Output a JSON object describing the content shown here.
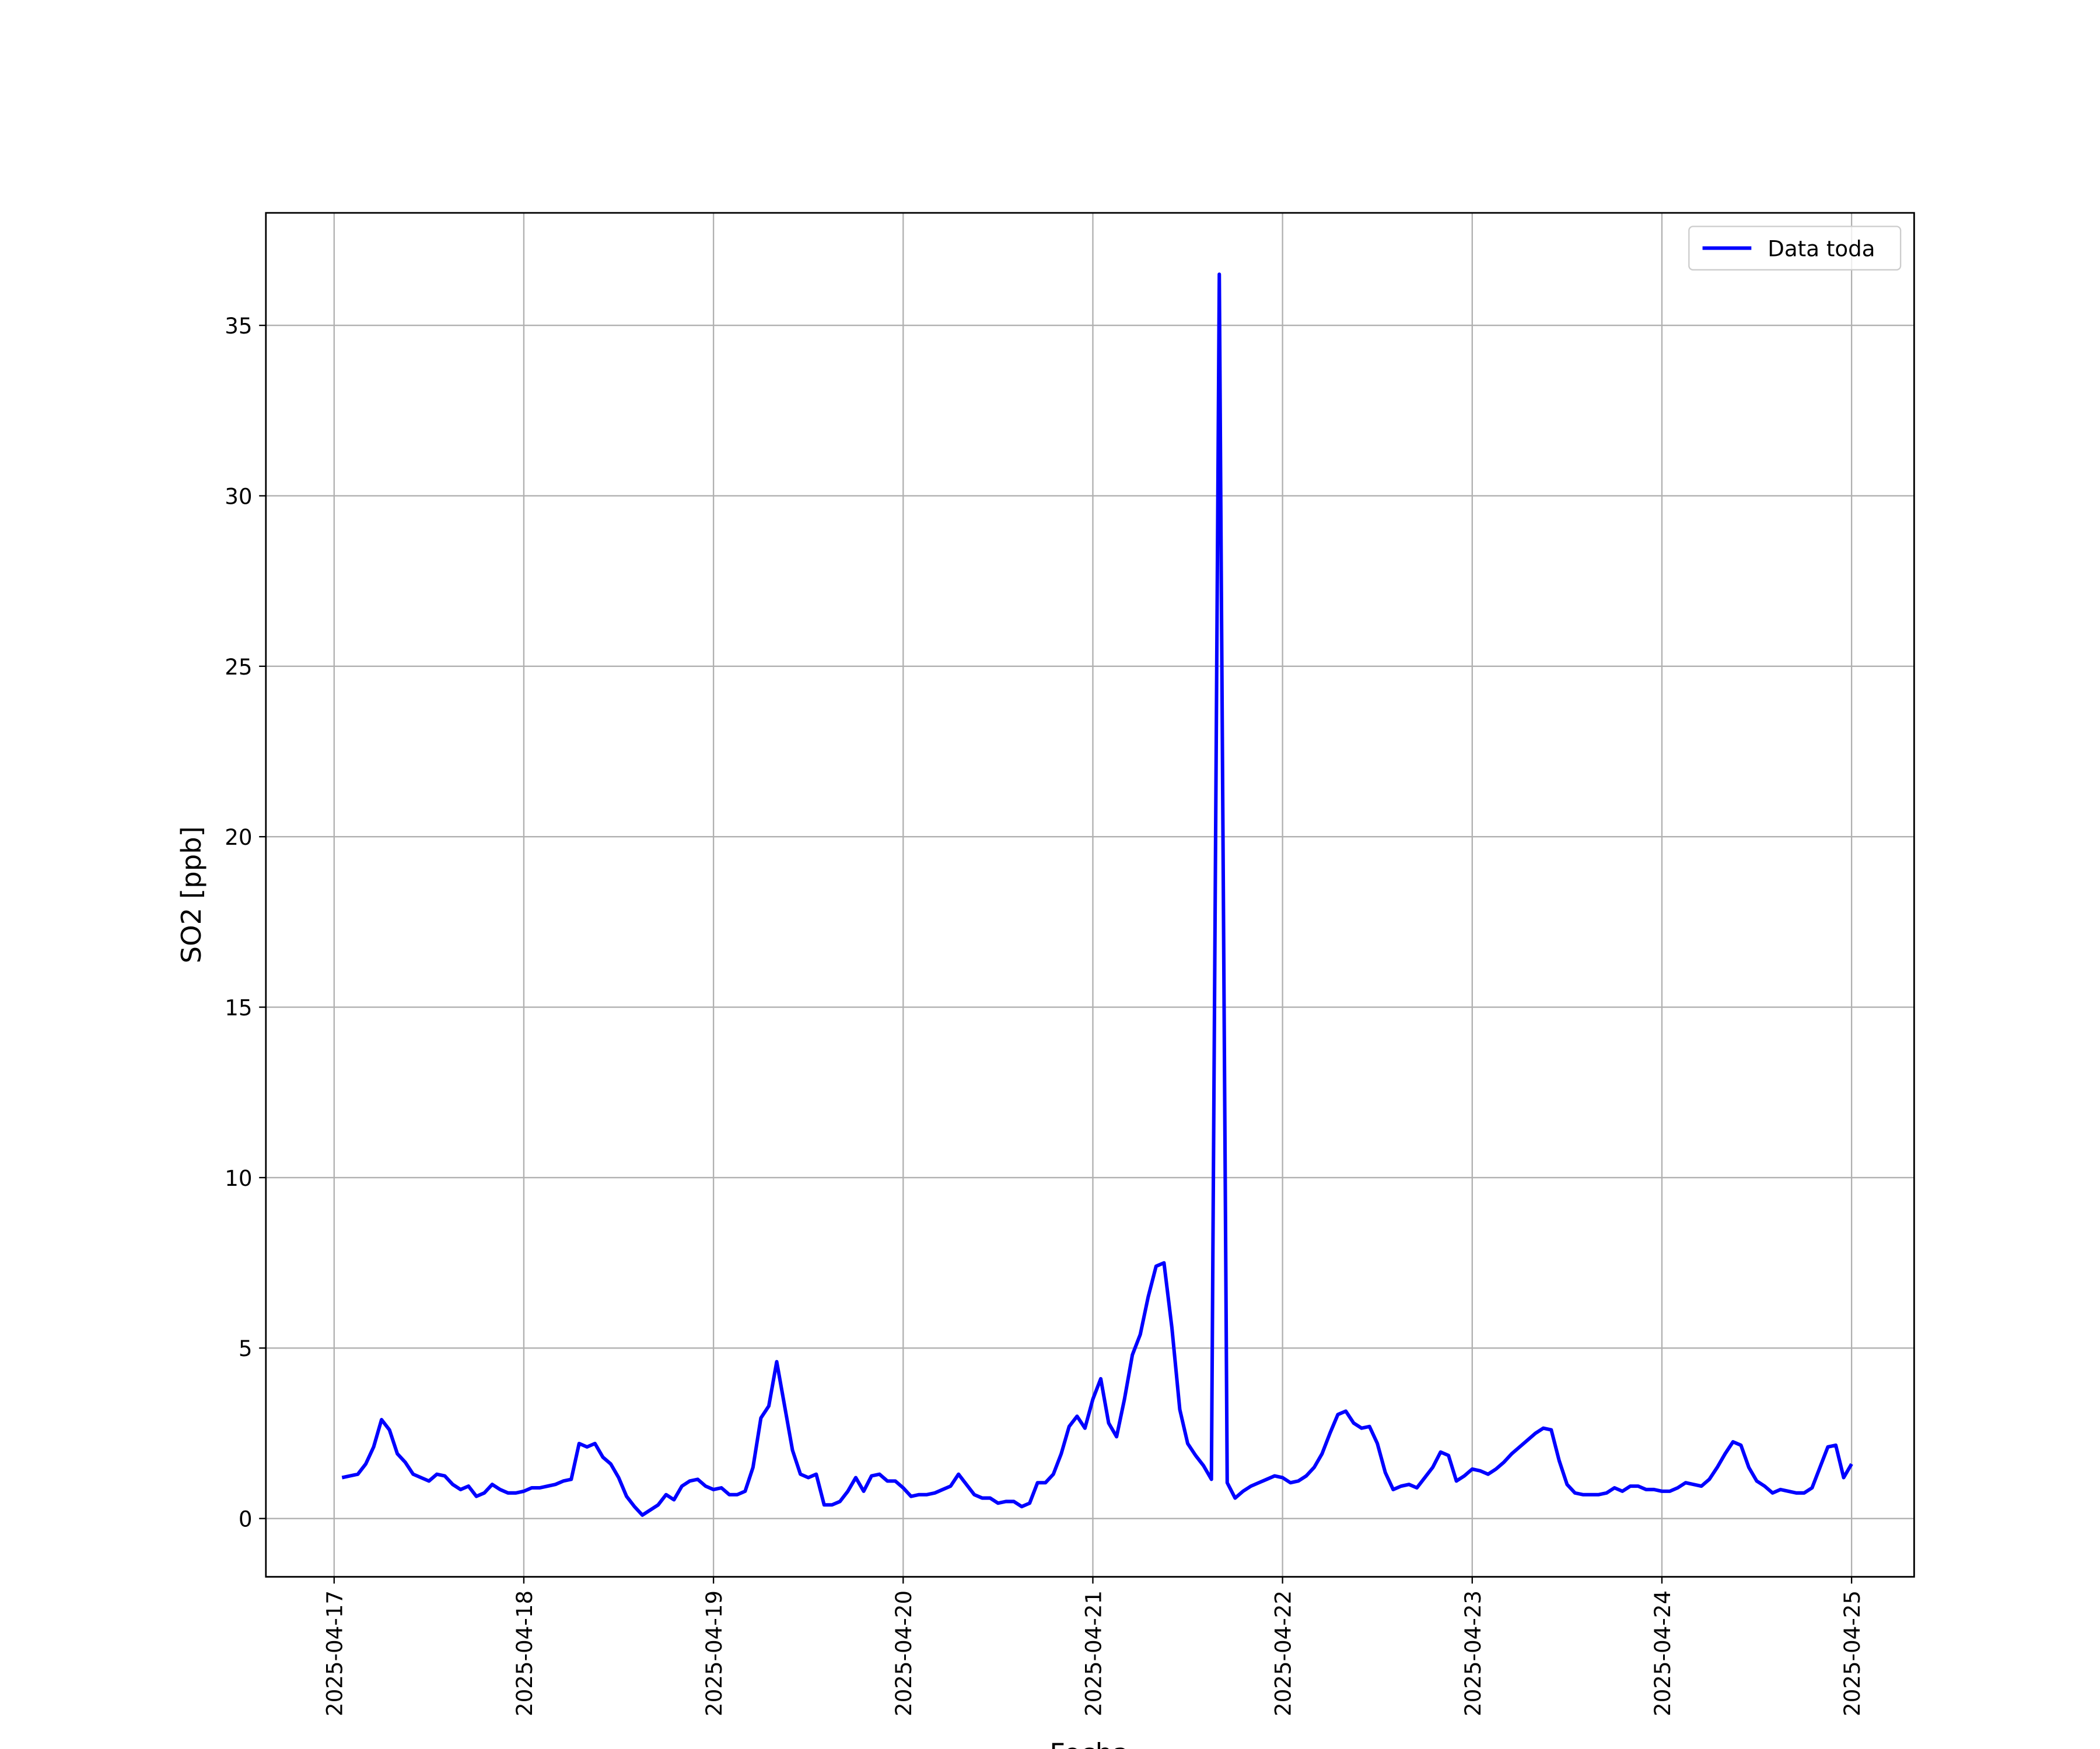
{
  "chart_data": {
    "type": "line",
    "xlabel": "Fecha",
    "ylabel": "SO2 [ppb]",
    "x": [
      "2025-04-17 01:00",
      "2025-04-17 02:00",
      "2025-04-17 03:00",
      "2025-04-17 04:00",
      "2025-04-17 05:00",
      "2025-04-17 06:00",
      "2025-04-17 07:00",
      "2025-04-17 08:00",
      "2025-04-17 09:00",
      "2025-04-17 10:00",
      "2025-04-17 11:00",
      "2025-04-17 12:00",
      "2025-04-17 13:00",
      "2025-04-17 14:00",
      "2025-04-17 15:00",
      "2025-04-17 16:00",
      "2025-04-17 17:00",
      "2025-04-17 18:00",
      "2025-04-17 19:00",
      "2025-04-17 20:00",
      "2025-04-17 21:00",
      "2025-04-17 22:00",
      "2025-04-17 23:00",
      "2025-04-18 00:00",
      "2025-04-18 01:00",
      "2025-04-18 02:00",
      "2025-04-18 03:00",
      "2025-04-18 04:00",
      "2025-04-18 05:00",
      "2025-04-18 06:00",
      "2025-04-18 07:00",
      "2025-04-18 08:00",
      "2025-04-18 09:00",
      "2025-04-18 10:00",
      "2025-04-18 11:00",
      "2025-04-18 12:00",
      "2025-04-18 13:00",
      "2025-04-18 14:00",
      "2025-04-18 15:00",
      "2025-04-18 16:00",
      "2025-04-18 17:00",
      "2025-04-18 18:00",
      "2025-04-18 19:00",
      "2025-04-18 20:00",
      "2025-04-18 21:00",
      "2025-04-18 22:00",
      "2025-04-18 23:00",
      "2025-04-19 00:00",
      "2025-04-19 01:00",
      "2025-04-19 02:00",
      "2025-04-19 03:00",
      "2025-04-19 04:00",
      "2025-04-19 05:00",
      "2025-04-19 06:00",
      "2025-04-19 07:00",
      "2025-04-19 08:00",
      "2025-04-19 09:00",
      "2025-04-19 10:00",
      "2025-04-19 11:00",
      "2025-04-19 12:00",
      "2025-04-19 13:00",
      "2025-04-19 14:00",
      "2025-04-19 15:00",
      "2025-04-19 16:00",
      "2025-04-19 17:00",
      "2025-04-19 18:00",
      "2025-04-19 19:00",
      "2025-04-19 20:00",
      "2025-04-19 21:00",
      "2025-04-19 22:00",
      "2025-04-19 23:00",
      "2025-04-20 00:00",
      "2025-04-20 01:00",
      "2025-04-20 02:00",
      "2025-04-20 03:00",
      "2025-04-20 04:00",
      "2025-04-20 05:00",
      "2025-04-20 06:00",
      "2025-04-20 07:00",
      "2025-04-20 08:00",
      "2025-04-20 09:00",
      "2025-04-20 10:00",
      "2025-04-20 11:00",
      "2025-04-20 12:00",
      "2025-04-20 13:00",
      "2025-04-20 14:00",
      "2025-04-20 15:00",
      "2025-04-20 16:00",
      "2025-04-20 17:00",
      "2025-04-20 18:00",
      "2025-04-20 19:00",
      "2025-04-20 20:00",
      "2025-04-20 21:00",
      "2025-04-20 22:00",
      "2025-04-20 23:00",
      "2025-04-21 00:00",
      "2025-04-21 01:00",
      "2025-04-21 02:00",
      "2025-04-21 03:00",
      "2025-04-21 04:00",
      "2025-04-21 05:00",
      "2025-04-21 06:00",
      "2025-04-21 07:00",
      "2025-04-21 08:00",
      "2025-04-21 09:00",
      "2025-04-21 10:00",
      "2025-04-21 11:00",
      "2025-04-21 12:00",
      "2025-04-21 13:00",
      "2025-04-21 14:00",
      "2025-04-21 15:00",
      "2025-04-21 16:00",
      "2025-04-21 17:00",
      "2025-04-21 18:00",
      "2025-04-21 19:00",
      "2025-04-21 20:00",
      "2025-04-21 21:00",
      "2025-04-21 22:00",
      "2025-04-21 23:00",
      "2025-04-22 00:00",
      "2025-04-22 01:00",
      "2025-04-22 02:00",
      "2025-04-22 03:00",
      "2025-04-22 04:00",
      "2025-04-22 05:00",
      "2025-04-22 06:00",
      "2025-04-22 07:00",
      "2025-04-22 08:00",
      "2025-04-22 09:00",
      "2025-04-22 10:00",
      "2025-04-22 11:00",
      "2025-04-22 12:00",
      "2025-04-22 13:00",
      "2025-04-22 14:00",
      "2025-04-22 15:00",
      "2025-04-22 16:00",
      "2025-04-22 17:00",
      "2025-04-22 18:00",
      "2025-04-22 19:00",
      "2025-04-22 20:00",
      "2025-04-22 21:00",
      "2025-04-22 22:00",
      "2025-04-22 23:00",
      "2025-04-23 00:00",
      "2025-04-23 01:00",
      "2025-04-23 02:00",
      "2025-04-23 03:00",
      "2025-04-23 04:00",
      "2025-04-23 05:00",
      "2025-04-23 06:00",
      "2025-04-23 07:00",
      "2025-04-23 08:00",
      "2025-04-23 09:00",
      "2025-04-23 10:00",
      "2025-04-23 11:00",
      "2025-04-23 12:00",
      "2025-04-23 13:00",
      "2025-04-23 14:00",
      "2025-04-23 15:00",
      "2025-04-23 16:00",
      "2025-04-23 17:00",
      "2025-04-23 18:00",
      "2025-04-23 19:00",
      "2025-04-23 20:00",
      "2025-04-23 21:00",
      "2025-04-23 22:00",
      "2025-04-23 23:00",
      "2025-04-24 00:00",
      "2025-04-24 01:00",
      "2025-04-24 02:00",
      "2025-04-24 03:00",
      "2025-04-24 04:00",
      "2025-04-24 05:00",
      "2025-04-24 06:00",
      "2025-04-24 07:00",
      "2025-04-24 08:00",
      "2025-04-24 09:00",
      "2025-04-24 10:00",
      "2025-04-24 11:00",
      "2025-04-24 12:00",
      "2025-04-24 13:00",
      "2025-04-24 14:00",
      "2025-04-24 15:00",
      "2025-04-24 16:00",
      "2025-04-24 17:00",
      "2025-04-24 18:00",
      "2025-04-24 19:00",
      "2025-04-24 20:00",
      "2025-04-24 21:00",
      "2025-04-24 22:00",
      "2025-04-24 23:00",
      "2025-04-25 00:00"
    ],
    "series": [
      {
        "name": "Data toda",
        "color": "#0000ff",
        "values": [
          1.2,
          1.25,
          1.3,
          1.6,
          2.1,
          2.9,
          2.6,
          1.9,
          1.65,
          1.3,
          1.2,
          1.1,
          1.3,
          1.25,
          1.0,
          0.85,
          0.95,
          0.65,
          0.75,
          1.0,
          0.85,
          0.75,
          0.75,
          0.8,
          0.9,
          0.9,
          0.95,
          1.0,
          1.1,
          1.15,
          2.2,
          2.1,
          2.2,
          1.8,
          1.6,
          1.2,
          0.65,
          0.35,
          0.1,
          0.25,
          0.4,
          0.7,
          0.55,
          0.95,
          1.1,
          1.15,
          0.95,
          0.85,
          0.9,
          0.7,
          0.7,
          0.8,
          1.5,
          2.95,
          3.3,
          4.6,
          3.3,
          2.0,
          1.3,
          1.2,
          1.3,
          0.4,
          0.4,
          0.5,
          0.8,
          1.2,
          0.8,
          1.25,
          1.3,
          1.1,
          1.1,
          0.9,
          0.65,
          0.7,
          0.7,
          0.75,
          0.85,
          0.95,
          1.3,
          1.0,
          0.7,
          0.6,
          0.6,
          0.45,
          0.5,
          0.5,
          0.35,
          0.45,
          1.05,
          1.05,
          1.3,
          1.9,
          2.7,
          3.0,
          2.65,
          3.5,
          4.1,
          2.8,
          2.4,
          3.5,
          4.8,
          5.4,
          6.5,
          7.4,
          7.5,
          5.6,
          3.2,
          2.2,
          1.85,
          1.55,
          1.15,
          36.5,
          1.05,
          0.6,
          0.8,
          0.95,
          1.05,
          1.15,
          1.25,
          1.2,
          1.05,
          1.1,
          1.25,
          1.5,
          1.9,
          2.5,
          3.05,
          3.15,
          2.8,
          2.65,
          2.7,
          2.2,
          1.35,
          0.85,
          0.95,
          1.0,
          0.9,
          1.2,
          1.5,
          1.95,
          1.85,
          1.1,
          1.25,
          1.45,
          1.4,
          1.3,
          1.45,
          1.65,
          1.9,
          2.1,
          2.3,
          2.5,
          2.65,
          2.6,
          1.7,
          1.0,
          0.75,
          0.7,
          0.7,
          0.7,
          0.75,
          0.9,
          0.8,
          0.95,
          0.95,
          0.85,
          0.85,
          0.8,
          0.8,
          0.9,
          1.05,
          1.0,
          0.95,
          1.15,
          1.5,
          1.9,
          2.25,
          2.15,
          1.5,
          1.1,
          0.95,
          0.75,
          0.85,
          0.8,
          0.75,
          0.75,
          0.9,
          1.5,
          2.1,
          2.15,
          1.2,
          1.6
        ]
      }
    ],
    "xlim": [
      "2025-04-16 15:22",
      "2025-04-25 07:55"
    ],
    "xticks": [
      "2025-04-17",
      "2025-04-18",
      "2025-04-19",
      "2025-04-20",
      "2025-04-21",
      "2025-04-22",
      "2025-04-23",
      "2025-04-24",
      "2025-04-25"
    ],
    "ylim": [
      -1.71,
      38.3
    ],
    "yticks": [
      0,
      5,
      10,
      15,
      20,
      25,
      30,
      35
    ],
    "grid": true,
    "legend": "upper right"
  }
}
